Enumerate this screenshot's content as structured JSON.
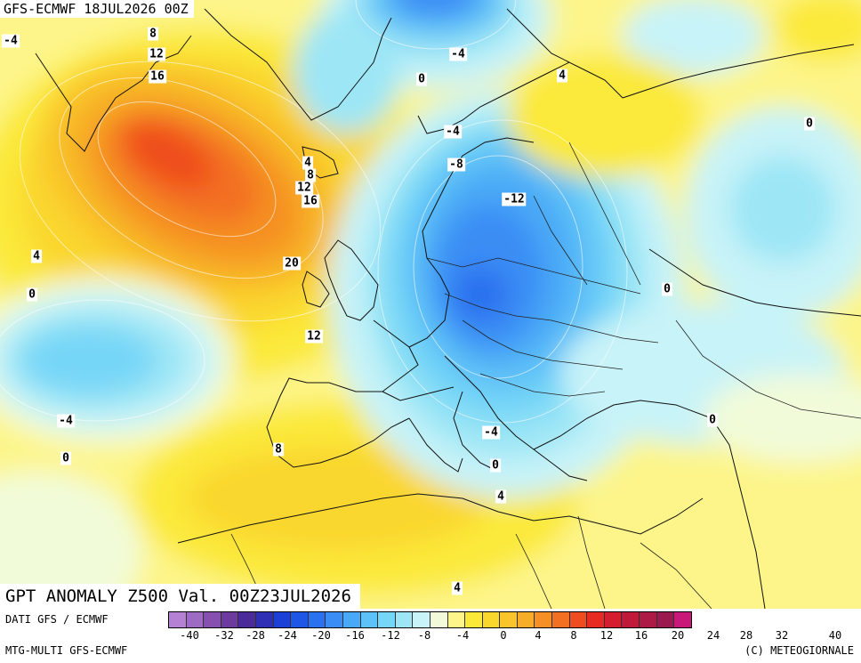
{
  "header": {
    "text": "GFS-ECMWF 18JUL2026 00Z"
  },
  "title": {
    "text": "GPT ANOMALY Z500 Val. 00Z23JUL2026"
  },
  "footer": {
    "source": "DATI GFS / ECMWF",
    "model": "MTG-MULTI GFS-ECMWF",
    "copyright": "(C) METEOGIORNALE"
  },
  "legend": {
    "colors": [
      "#b581d5",
      "#9d6bc4",
      "#8650b0",
      "#6d3aa0",
      "#4b2a9a",
      "#2f2fb5",
      "#1c3fd6",
      "#1e56e6",
      "#2a71ef",
      "#3a8df4",
      "#4aa9f7",
      "#5ec1f7",
      "#76d6f7",
      "#9de6f6",
      "#c8f3f8",
      "#f1fbd9",
      "#fdf58a",
      "#fbe93a",
      "#fad72d",
      "#f9c52a",
      "#f7ad27",
      "#f59024",
      "#f37022",
      "#ef4d1f",
      "#e72b22",
      "#d41d2e",
      "#c01a3a",
      "#ad1a46",
      "#9a1a50",
      "#c8197a"
    ],
    "ticks": [
      "-40",
      "-32",
      "-28",
      "-24",
      "-20",
      "-16",
      "-12",
      "-8",
      "-4",
      "0",
      "4",
      "8",
      "12",
      "16",
      "20",
      "24",
      "28",
      "32",
      "40"
    ]
  },
  "contour_labels": [
    "-4",
    "8",
    "12",
    "16",
    "-4",
    "0",
    "4",
    "0",
    "-4",
    "-8",
    "-12",
    "4",
    "8",
    "12",
    "16",
    "20",
    "4",
    "0",
    "0",
    "12",
    "-4",
    "0",
    "8",
    "-4",
    "0",
    "4",
    "4",
    "0"
  ]
}
